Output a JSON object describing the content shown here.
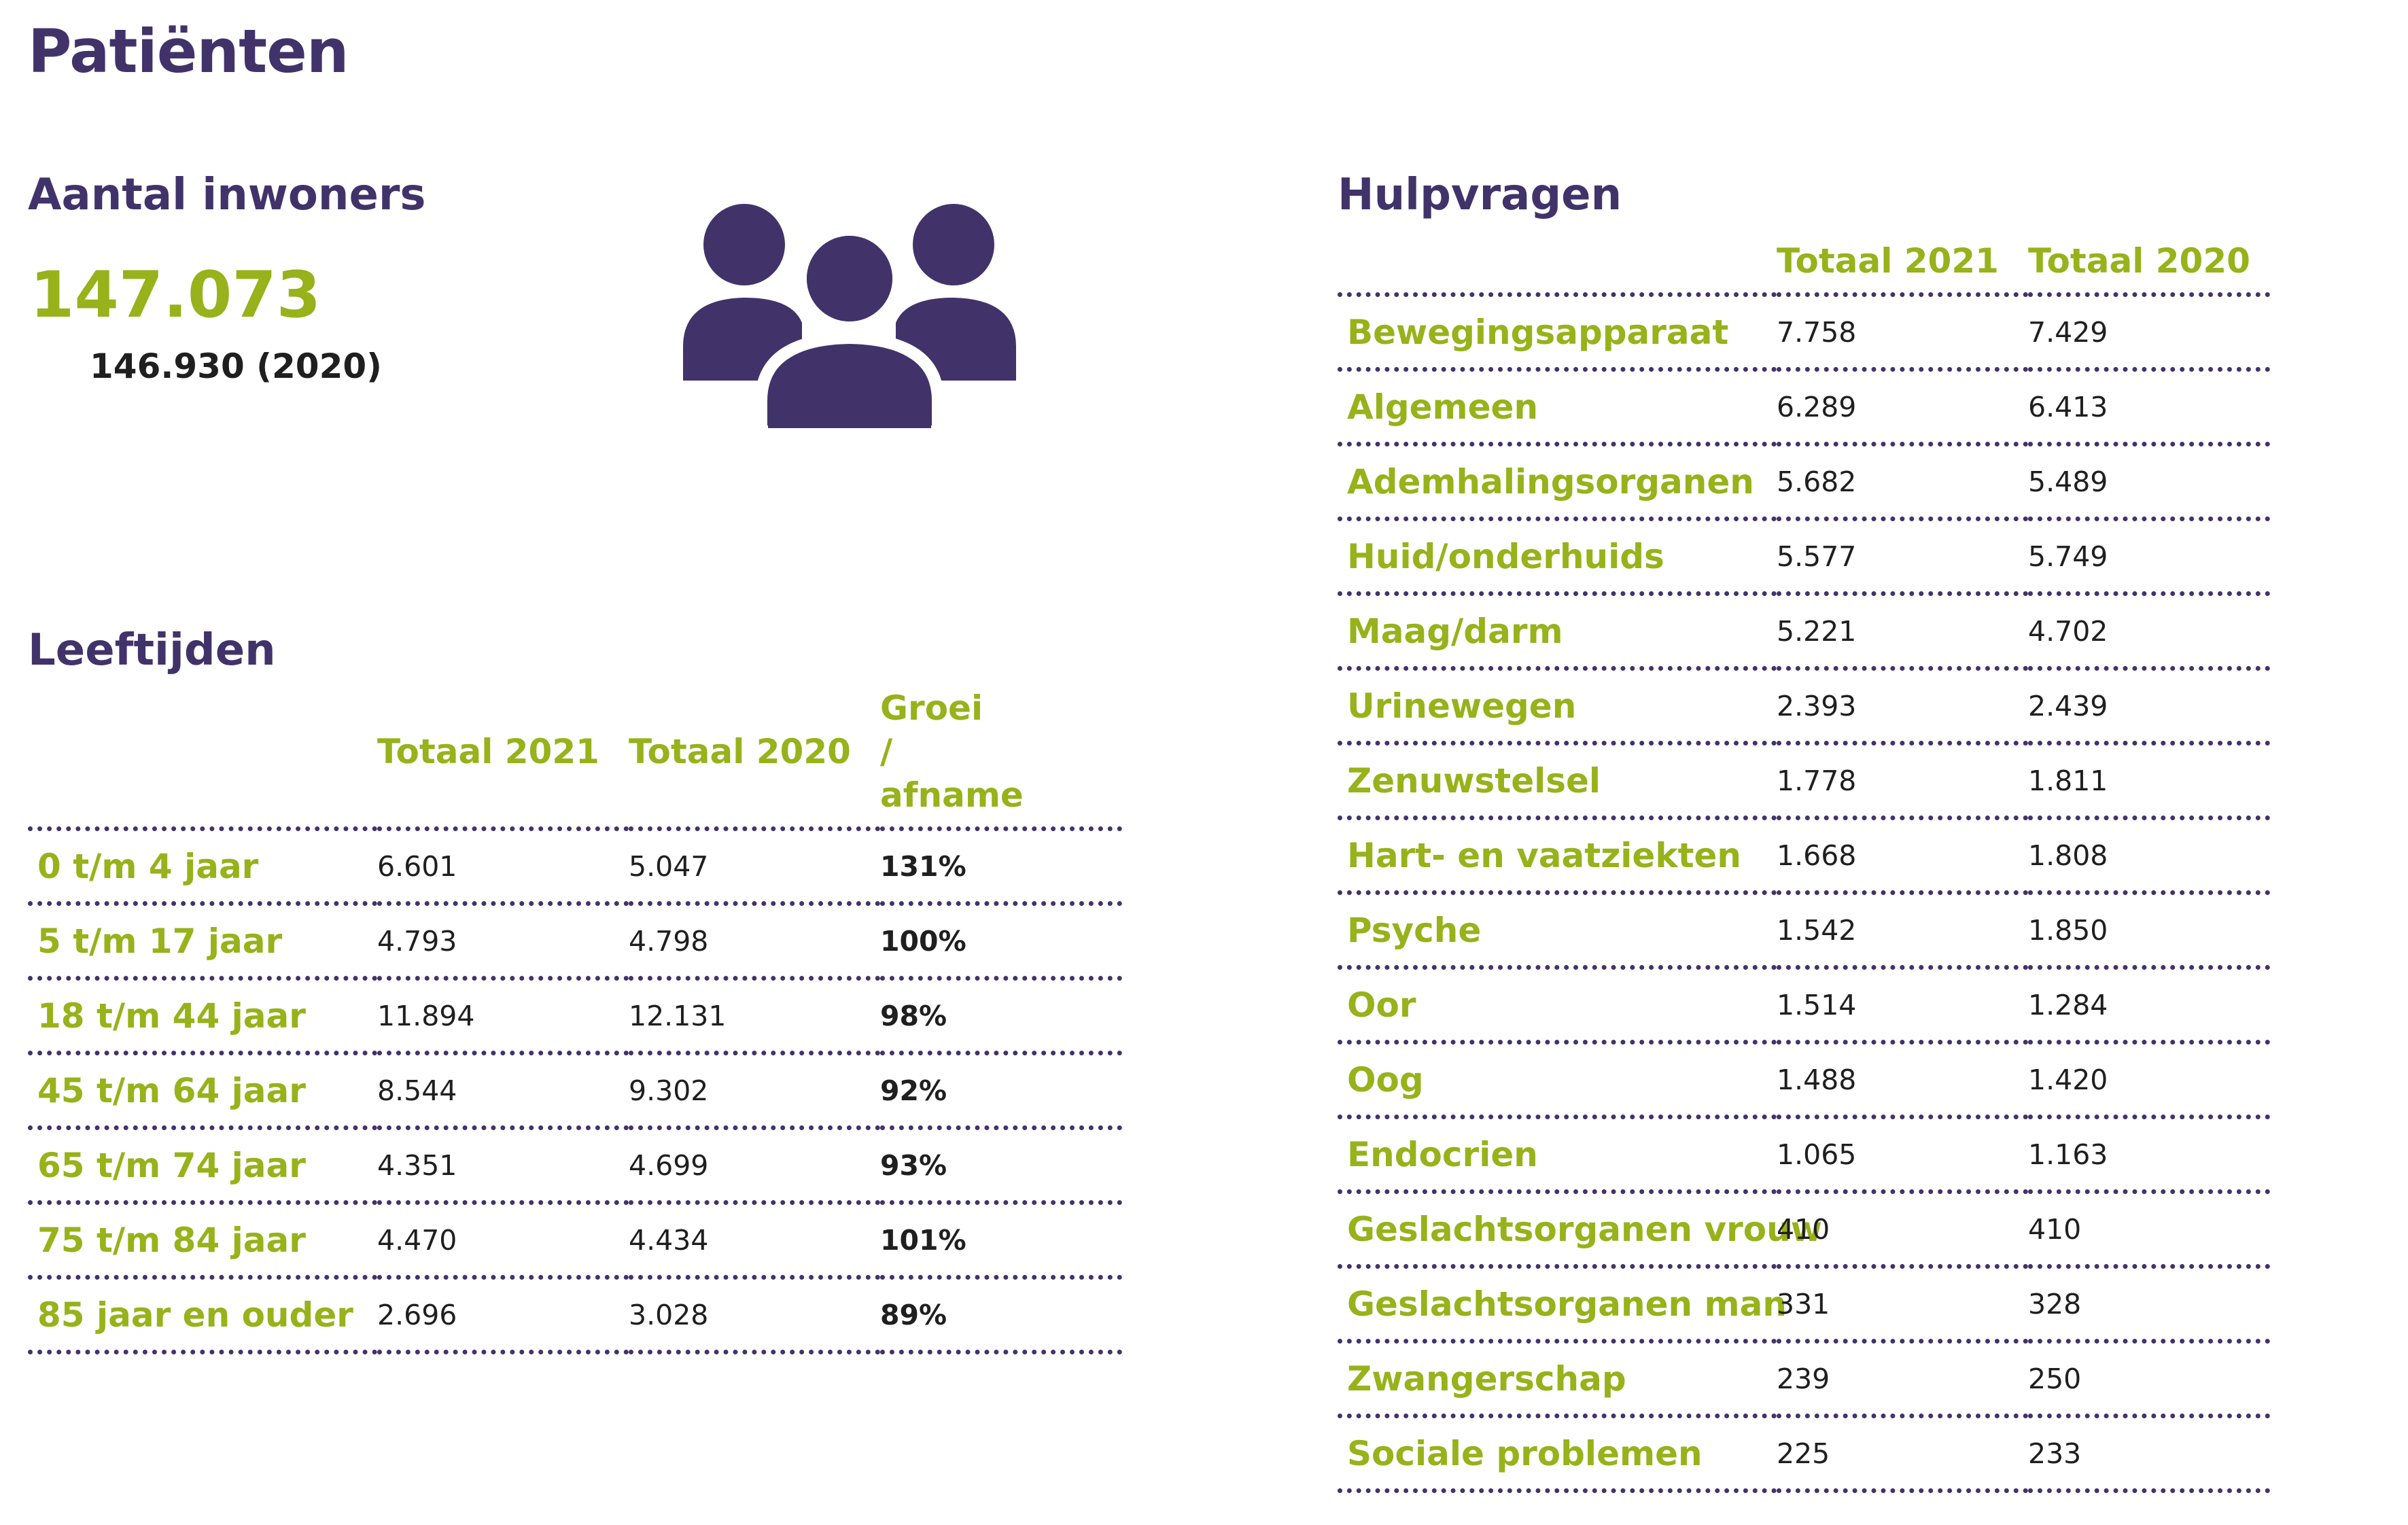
{
  "page": {
    "title": "Patiënten"
  },
  "inwoners": {
    "heading": "Aantal inwoners",
    "current": "147.073",
    "previous": "146.930 (2020)",
    "icon": "people-group-icon",
    "icon_color": "#41336a"
  },
  "leeftijden": {
    "heading": "Leeftijden",
    "columns": [
      "Totaal 2021",
      "Totaal 2020",
      "Groei / afname"
    ],
    "rows": [
      {
        "label": "0 t/m 4 jaar",
        "t2021": "6.601",
        "t2020": "5.047",
        "growth": "131%"
      },
      {
        "label": "5 t/m 17 jaar",
        "t2021": "4.793",
        "t2020": "4.798",
        "growth": "100%"
      },
      {
        "label": "18 t/m 44 jaar",
        "t2021": "11.894",
        "t2020": "12.131",
        "growth": "98%"
      },
      {
        "label": "45 t/m 64 jaar",
        "t2021": "8.544",
        "t2020": "9.302",
        "growth": "92%"
      },
      {
        "label": "65 t/m 74 jaar",
        "t2021": "4.351",
        "t2020": "4.699",
        "growth": "93%"
      },
      {
        "label": "75 t/m 84 jaar",
        "t2021": "4.470",
        "t2020": "4.434",
        "growth": "101%"
      },
      {
        "label": "85 jaar en ouder",
        "t2021": "2.696",
        "t2020": "3.028",
        "growth": "89%"
      }
    ]
  },
  "hulpvragen": {
    "heading": "Hulpvragen",
    "columns": [
      "Totaal 2021",
      "Totaal 2020"
    ],
    "rows": [
      {
        "label": "Bewegingsapparaat",
        "t2021": "7.758",
        "t2020": "7.429"
      },
      {
        "label": "Algemeen",
        "t2021": "6.289",
        "t2020": "6.413"
      },
      {
        "label": "Ademhalingsorganen",
        "t2021": "5.682",
        "t2020": "5.489"
      },
      {
        "label": "Huid/onderhuids",
        "t2021": "5.577",
        "t2020": "5.749"
      },
      {
        "label": "Maag/darm",
        "t2021": "5.221",
        "t2020": "4.702"
      },
      {
        "label": "Urinewegen",
        "t2021": "2.393",
        "t2020": "2.439"
      },
      {
        "label": "Zenuwstelsel",
        "t2021": "1.778",
        "t2020": "1.811"
      },
      {
        "label": "Hart- en vaatziekten",
        "t2021": "1.668",
        "t2020": "1.808"
      },
      {
        "label": "Psyche",
        "t2021": "1.542",
        "t2020": "1.850"
      },
      {
        "label": "Oor",
        "t2021": "1.514",
        "t2020": "1.284"
      },
      {
        "label": "Oog",
        "t2021": "1.488",
        "t2020": "1.420"
      },
      {
        "label": "Endocrien",
        "t2021": "1.065",
        "t2020": "1.163"
      },
      {
        "label": "Geslachtsorganen vrouw",
        "t2021": "410",
        "t2020": "410"
      },
      {
        "label": "Geslachtsorganen man",
        "t2021": "331",
        "t2020": "328"
      },
      {
        "label": "Zwangerschap",
        "t2021": "239",
        "t2020": "250"
      },
      {
        "label": "Sociale problemen",
        "t2021": "225",
        "t2020": "233"
      }
    ]
  },
  "colors": {
    "heading_purple": "#41336a",
    "accent_green": "#97b21a",
    "text_dark": "#1f1f1f"
  }
}
